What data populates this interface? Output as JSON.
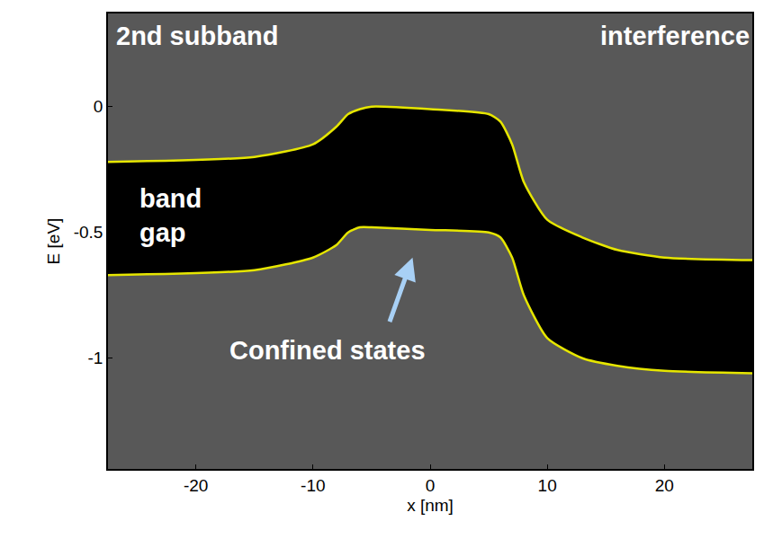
{
  "chart_data": {
    "type": "line",
    "xlabel": "x [nm]",
    "ylabel": "E [eV]",
    "xlim": [
      -27.5,
      27.5
    ],
    "ylim": [
      -1.44,
      0.37
    ],
    "xticks": [
      -20,
      -10,
      0,
      10,
      20
    ],
    "yticks": [
      -1,
      -0.5,
      0
    ],
    "grid": false,
    "series": [
      {
        "color": "#e6e600",
        "x": [
          -27.5,
          -15,
          -10,
          -8,
          -7,
          -6,
          -5,
          0,
          5,
          6,
          7,
          8,
          10,
          13,
          16,
          20,
          27.5
        ],
        "values": [
          -0.67,
          -0.65,
          -0.6,
          -0.55,
          -0.5,
          -0.48,
          -0.48,
          -0.49,
          -0.5,
          -0.52,
          -0.6,
          -0.75,
          -0.92,
          -1.0,
          -1.03,
          -1.05,
          -1.06
        ]
      },
      {
        "color": "#e6e600",
        "x": [
          -27.5,
          -15,
          -10,
          -8,
          -7,
          -6,
          -5,
          0,
          5,
          6,
          7,
          8,
          10,
          13,
          16,
          20,
          27.5
        ],
        "values": [
          -0.22,
          -0.2,
          -0.15,
          -0.08,
          -0.03,
          -0.01,
          0.0,
          -0.01,
          -0.03,
          -0.06,
          -0.15,
          -0.3,
          -0.45,
          -0.52,
          -0.57,
          -0.6,
          -0.61
        ]
      }
    ],
    "annotations": [
      [
        "2nd subband"
      ],
      [
        "interference"
      ],
      [
        "band",
        "gap"
      ],
      [
        "Confined states"
      ]
    ]
  }
}
